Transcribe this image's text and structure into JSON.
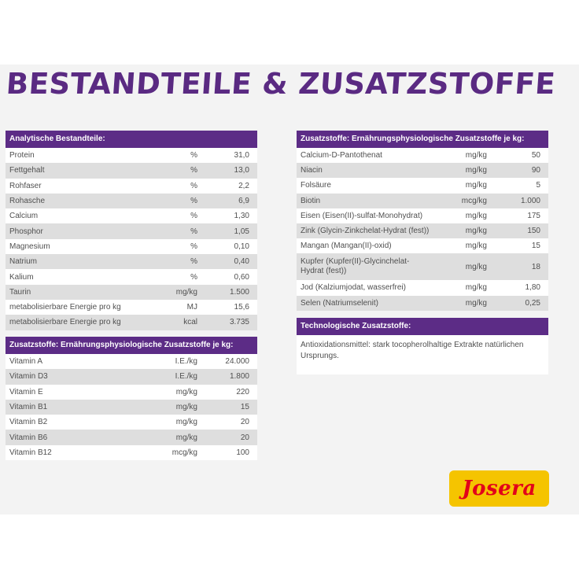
{
  "title": "BESTANDTEILE & ZUSATZSTOFFE",
  "analytical": {
    "header": "Analytische Bestandteile:",
    "rows": [
      {
        "name": "Protein",
        "unit": "%",
        "value": "31,0"
      },
      {
        "name": "Fettgehalt",
        "unit": "%",
        "value": "13,0"
      },
      {
        "name": "Rohfaser",
        "unit": "%",
        "value": "2,2"
      },
      {
        "name": "Rohasche",
        "unit": "%",
        "value": "6,9"
      },
      {
        "name": "Calcium",
        "unit": "%",
        "value": "1,30"
      },
      {
        "name": "Phosphor",
        "unit": "%",
        "value": "1,05"
      },
      {
        "name": "Magnesium",
        "unit": "%",
        "value": "0,10"
      },
      {
        "name": "Natrium",
        "unit": "%",
        "value": "0,40"
      },
      {
        "name": "Kalium",
        "unit": "%",
        "value": "0,60"
      },
      {
        "name": "Taurin",
        "unit": "mg/kg",
        "value": "1.500"
      },
      {
        "name": "metabolisierbare Energie pro kg",
        "unit": "MJ",
        "value": "15,6"
      },
      {
        "name": "metabolisierbare Energie pro kg",
        "unit": "kcal",
        "value": "3.735"
      }
    ]
  },
  "vitamins": {
    "header": "Zusatzstoffe: Ernährungsphysiologische Zusatzstoffe je kg:",
    "rows": [
      {
        "name": "Vitamin A",
        "unit": "I.E./kg",
        "value": "24.000"
      },
      {
        "name": "Vitamin D3",
        "unit": "I.E./kg",
        "value": "1.800"
      },
      {
        "name": "Vitamin E",
        "unit": "mg/kg",
        "value": "220"
      },
      {
        "name": "Vitamin B1",
        "unit": "mg/kg",
        "value": "15"
      },
      {
        "name": "Vitamin B2",
        "unit": "mg/kg",
        "value": "20"
      },
      {
        "name": "Vitamin B6",
        "unit": "mg/kg",
        "value": "20"
      },
      {
        "name": "Vitamin B12",
        "unit": "mcg/kg",
        "value": "100"
      }
    ]
  },
  "minerals": {
    "header": "Zusatzstoffe: Ernährungsphysiologische Zusatzstoffe je kg:",
    "rows": [
      {
        "name": "Calcium-D-Pantothenat",
        "unit": "mg/kg",
        "value": "50"
      },
      {
        "name": "Niacin",
        "unit": "mg/kg",
        "value": "90"
      },
      {
        "name": "Folsäure",
        "unit": "mg/kg",
        "value": "5"
      },
      {
        "name": "Biotin",
        "unit": "mcg/kg",
        "value": "1.000"
      },
      {
        "name": "Eisen (Eisen(II)-sulfat-Monohydrat)",
        "unit": "mg/kg",
        "value": "175"
      },
      {
        "name": "Zink (Glycin-Zinkchelat-Hydrat (fest))",
        "unit": "mg/kg",
        "value": "150"
      },
      {
        "name": "Mangan (Mangan(II)-oxid)",
        "unit": "mg/kg",
        "value": "15"
      },
      {
        "name": "Kupfer (Kupfer(II)-Glycinchelat-Hydrat (fest))",
        "unit": "mg/kg",
        "value": "18"
      },
      {
        "name": "Jod (Kalziumjodat, wasserfrei)",
        "unit": "mg/kg",
        "value": "1,80"
      },
      {
        "name": "Selen (Natriumselenit)",
        "unit": "mg/kg",
        "value": "0,25"
      }
    ]
  },
  "technological": {
    "header": "Technologische Zusatzstoffe:",
    "text": "Antioxidationsmittel: stark tocopherolhaltige Extrakte natürlichen Ursprungs."
  },
  "logo": "Josera",
  "colors": {
    "accent": "#5c2c86",
    "logo_bg": "#f5c400",
    "logo_text": "#e2001a"
  }
}
